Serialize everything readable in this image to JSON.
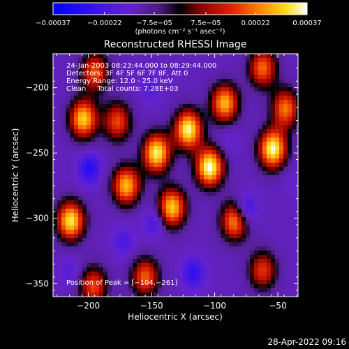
{
  "chart_data": {
    "type": "heatmap",
    "title": "Reconstructed RHESSI Image",
    "xlabel": "Heliocentric X (arcsec)",
    "ylabel": "Heliocentric Y (arcsec)",
    "xlim": [
      -228,
      -34
    ],
    "ylim": [
      -360,
      -174
    ],
    "xticks": [
      -200,
      -150,
      -100,
      -50
    ],
    "yticks": [
      -200,
      -250,
      -300,
      -350
    ],
    "xtick_labels": [
      "−200",
      "−150",
      "−100",
      "−50"
    ],
    "ytick_labels": [
      "−200",
      "−250",
      "−300",
      "−350"
    ],
    "colorbar": {
      "range": [
        -0.00037,
        0.00037
      ],
      "ticks": [
        -0.00037,
        -0.00022,
        -7.5e-05,
        7.5e-05,
        0.00022,
        0.00037
      ],
      "tick_labels": [
        "−0.00037",
        "−0.00022",
        "−7.5e−05",
        "7.5e−05",
        "0.00022",
        "0.00037"
      ],
      "unit_label": "(photons cm⁻² s⁻¹ asec⁻²)",
      "colors": [
        "#0000ff",
        "#5522cc",
        "#7733bb",
        "#000000",
        "#990000",
        "#ff4400",
        "#ffcc00",
        "#ffffff"
      ]
    },
    "annotations": [
      "24-Jan-2003 08:23:44.000 to 08:29:44.000",
      "Detectors: 3F 4F 5F 6F 7F 8F, Att 0",
      "Energy Range: 12.0 - 25.0 keV",
      "Clean     Total counts: 7.28E+03",
      "Position of Peak = [−104,−261]"
    ],
    "peak": {
      "x": -104,
      "y": -261,
      "value": 0.00037
    },
    "sources": [
      {
        "x": -214,
        "y": -302,
        "value": 0.00033
      },
      {
        "x": -204,
        "y": -224,
        "value": 0.0003
      },
      {
        "x": -170,
        "y": -275,
        "value": 0.00028
      },
      {
        "x": -177,
        "y": -226,
        "value": 0.00018
      },
      {
        "x": -146,
        "y": -250,
        "value": 0.00034
      },
      {
        "x": -134,
        "y": -292,
        "value": 0.0003
      },
      {
        "x": -121,
        "y": -232,
        "value": 0.00035
      },
      {
        "x": -104,
        "y": -261,
        "value": 0.00037
      },
      {
        "x": -92,
        "y": -212,
        "value": 0.00028
      },
      {
        "x": -84,
        "y": -302,
        "value": 0.00026
      },
      {
        "x": -54,
        "y": -247,
        "value": 0.00036
      },
      {
        "x": -44,
        "y": -216,
        "value": 0.00022
      },
      {
        "x": -155,
        "y": -345,
        "value": 0.0002
      },
      {
        "x": -196,
        "y": -352,
        "value": 0.00018
      },
      {
        "x": -62,
        "y": -340,
        "value": 0.00016
      },
      {
        "x": -195,
        "y": -188,
        "value": 0.00019
      },
      {
        "x": -62,
        "y": -185,
        "value": 0.00021
      }
    ],
    "negatives": [
      {
        "x": -199,
        "y": -262,
        "value": -0.0003
      },
      {
        "x": -147,
        "y": -303,
        "value": -0.00025
      },
      {
        "x": -76,
        "y": -294,
        "value": -0.00033
      },
      {
        "x": -117,
        "y": -342,
        "value": -0.00028
      },
      {
        "x": -172,
        "y": -318,
        "value": -0.00022
      },
      {
        "x": -150,
        "y": -200,
        "value": -0.0002
      },
      {
        "x": -90,
        "y": -240,
        "value": -0.00018
      },
      {
        "x": -214,
        "y": -340,
        "value": -0.0002
      },
      {
        "x": -40,
        "y": -270,
        "value": -0.00015
      }
    ]
  },
  "footer": {
    "timestamp": "28-Apr-2022 09:16"
  }
}
